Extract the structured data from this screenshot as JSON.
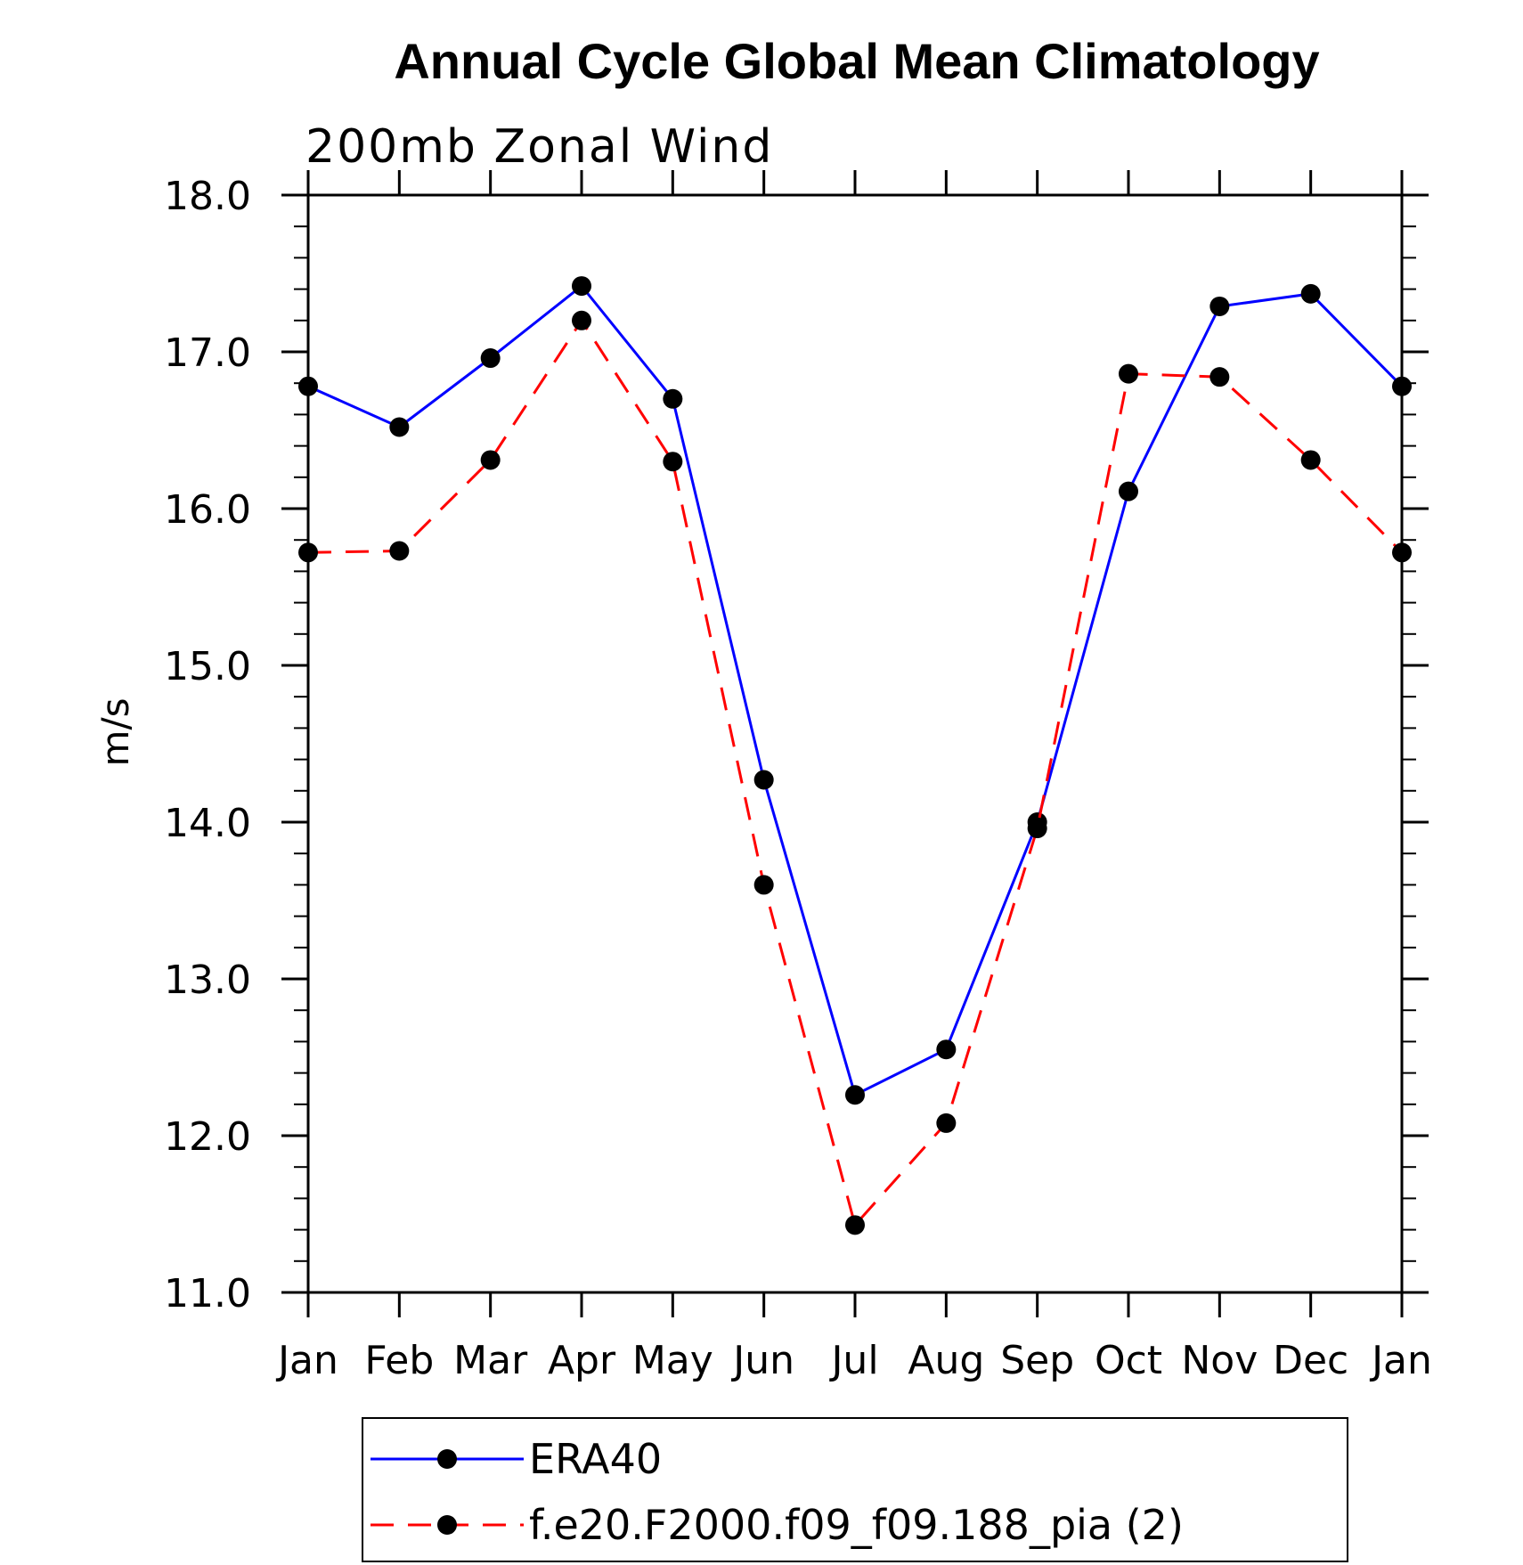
{
  "chart_data": {
    "type": "line",
    "title": "Annual Cycle Global Mean Climatology",
    "subtitle": "200mb Zonal Wind",
    "xlabel": "",
    "ylabel": "m/s",
    "categories": [
      "Jan",
      "Feb",
      "Mar",
      "Apr",
      "May",
      "Jun",
      "Jul",
      "Aug",
      "Sep",
      "Oct",
      "Nov",
      "Dec",
      "Jan"
    ],
    "ylim": [
      11.0,
      18.0
    ],
    "yticks": [
      "11.0",
      "12.0",
      "13.0",
      "14.0",
      "15.0",
      "16.0",
      "17.0",
      "18.0"
    ],
    "grid": false,
    "legend_position": "bottom",
    "series": [
      {
        "name": "ERA40",
        "color": "#0000ff",
        "dash": "solid",
        "values": [
          16.78,
          16.52,
          16.96,
          17.42,
          16.7,
          14.27,
          12.26,
          12.55,
          14.0,
          16.11,
          17.29,
          17.37,
          16.78
        ]
      },
      {
        "name": "f.e20.F2000.f09_f09.188_pia (2)",
        "color": "#ff0000",
        "dash": "dashed",
        "values": [
          15.72,
          15.73,
          16.31,
          17.2,
          16.3,
          13.6,
          11.43,
          12.08,
          13.96,
          16.86,
          16.84,
          16.31,
          15.72
        ]
      }
    ]
  }
}
